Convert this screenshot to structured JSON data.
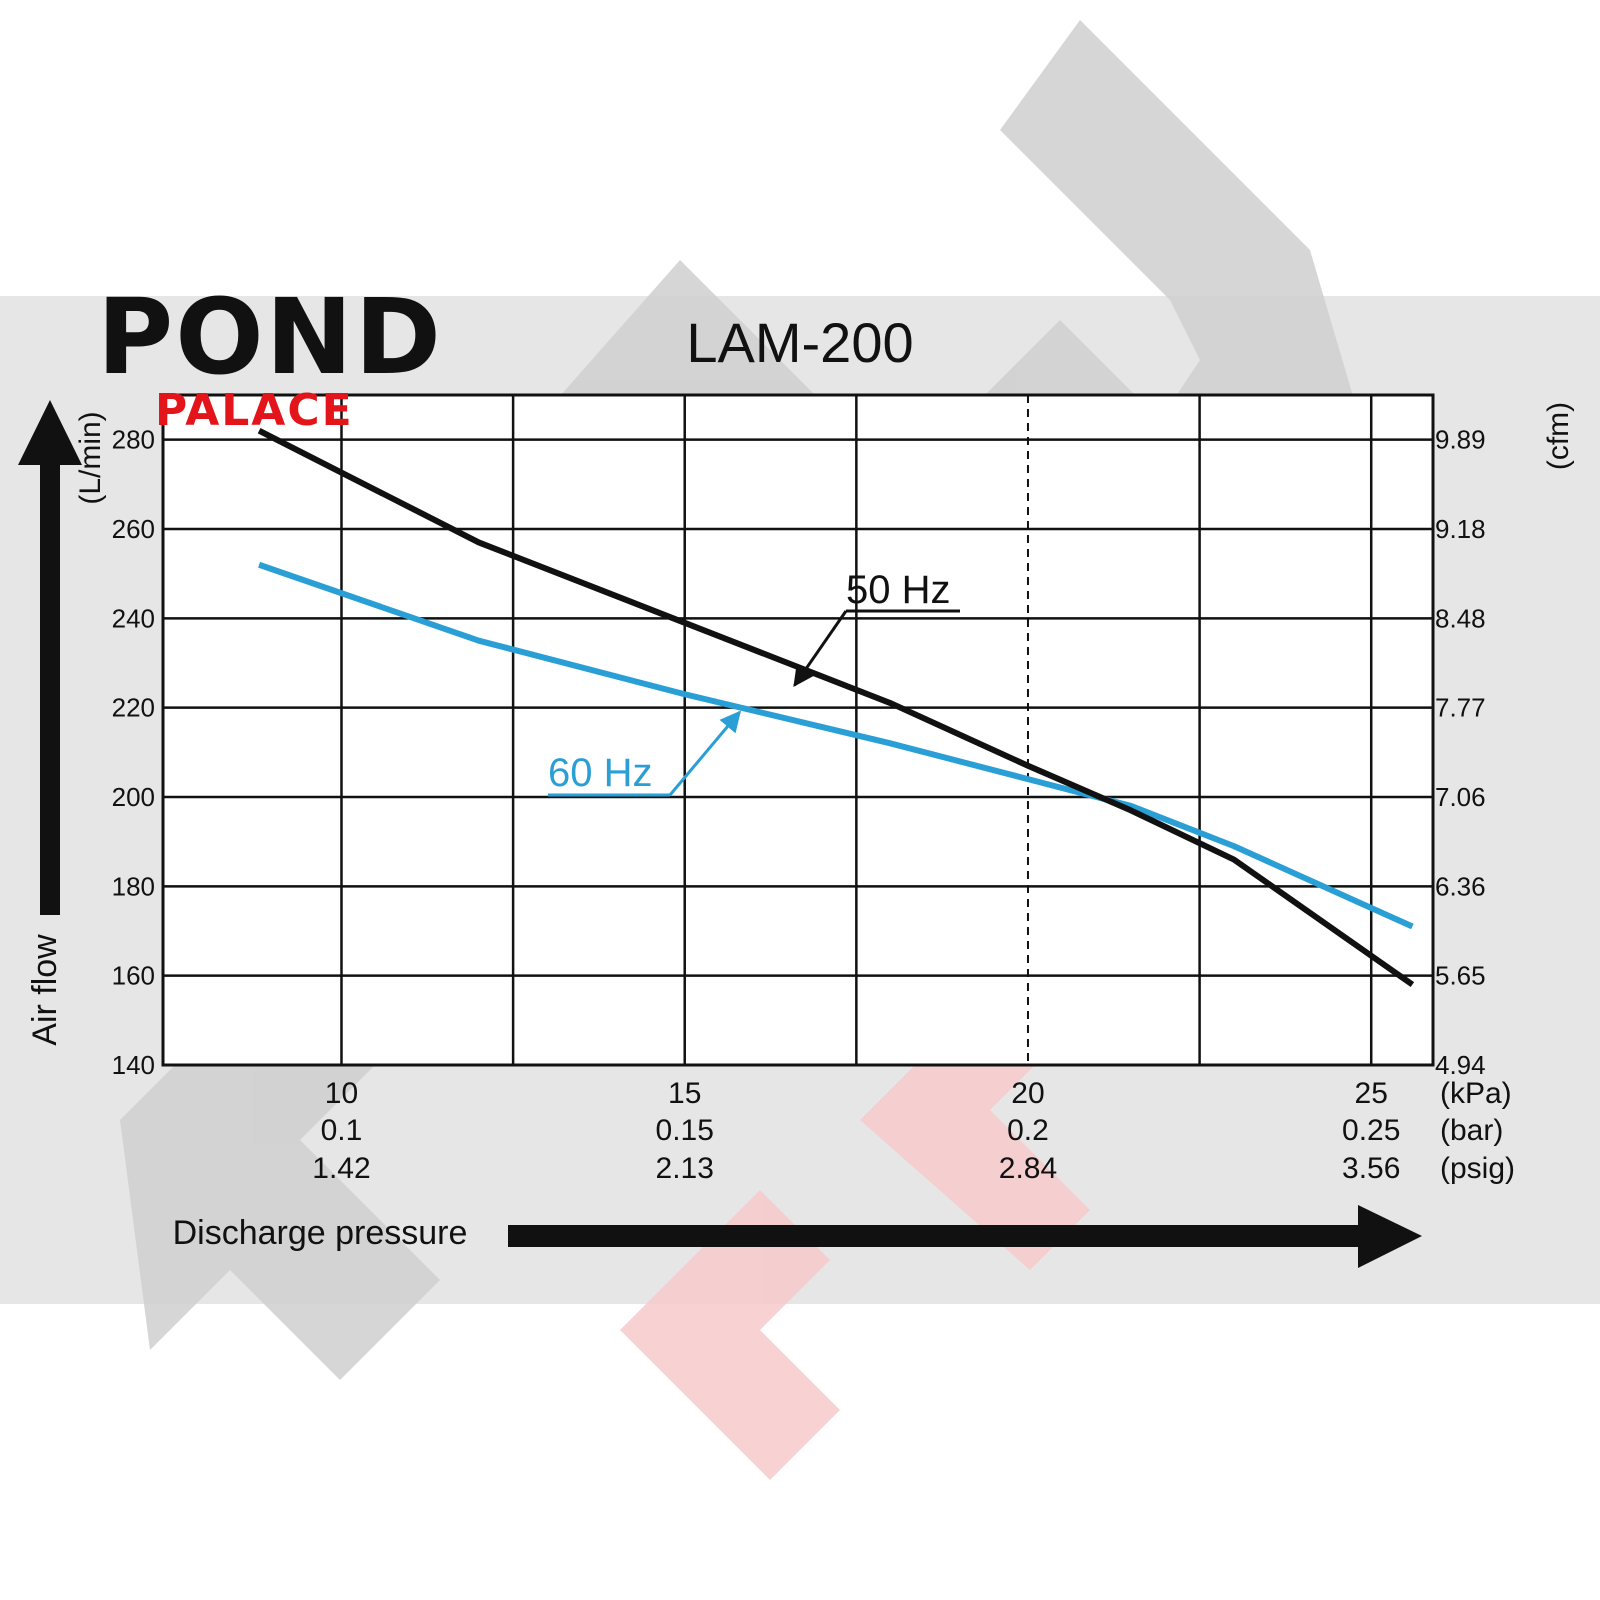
{
  "brand": {
    "name": "POND",
    "sub": "PALACE",
    "accent": "#e3151a"
  },
  "chart_data": {
    "type": "line",
    "title": "LAM-200",
    "xlabel": "Discharge pressure",
    "ylabel": "Air flow",
    "yunit_left": "(L/min)",
    "yunit_right": "(cfm)",
    "xlim": [
      7.4,
      25.9
    ],
    "ylim": [
      140,
      290
    ],
    "grid": true,
    "dashed_vline_x": 20,
    "x_ticks": [
      {
        "x": 10,
        "kpa": "10",
        "bar": "0.1",
        "psig": "1.42"
      },
      {
        "x": 15,
        "kpa": "15",
        "bar": "0.15",
        "psig": "2.13"
      },
      {
        "x": 20,
        "kpa": "20",
        "bar": "0.2",
        "psig": "2.84"
      },
      {
        "x": 25,
        "kpa": "25",
        "bar": "0.25",
        "psig": "3.56"
      }
    ],
    "x_gridlines": [
      10,
      12.5,
      15,
      17.5,
      20,
      22.5,
      25
    ],
    "x_unit_labels": [
      "(kPa)",
      "(bar)",
      "(psig)"
    ],
    "y_ticks_left": [
      {
        "y": 140,
        "label": "140"
      },
      {
        "y": 160,
        "label": "160"
      },
      {
        "y": 180,
        "label": "180"
      },
      {
        "y": 200,
        "label": "200"
      },
      {
        "y": 220,
        "label": "220"
      },
      {
        "y": 240,
        "label": "240"
      },
      {
        "y": 260,
        "label": "260"
      },
      {
        "y": 280,
        "label": "280"
      }
    ],
    "y_ticks_right": [
      {
        "y": 140,
        "label": "4.94"
      },
      {
        "y": 160,
        "label": "5.65"
      },
      {
        "y": 180,
        "label": "6.36"
      },
      {
        "y": 200,
        "label": "7.06"
      },
      {
        "y": 220,
        "label": "7.77"
      },
      {
        "y": 240,
        "label": "8.48"
      },
      {
        "y": 260,
        "label": "9.18"
      },
      {
        "y": 280,
        "label": "9.89"
      }
    ],
    "series": [
      {
        "name": "50 Hz",
        "color": "#111111",
        "x": [
          8.8,
          12,
          15,
          18,
          20,
          21.5,
          23,
          25.6
        ],
        "y": [
          282,
          257,
          239,
          221,
          207,
          197,
          186,
          158
        ]
      },
      {
        "name": "60 Hz",
        "color": "#2a9fd6",
        "x": [
          8.8,
          12,
          15,
          18,
          20,
          21.5,
          23,
          25.6
        ],
        "y": [
          252,
          235,
          223,
          212,
          204,
          198,
          189,
          171
        ]
      }
    ],
    "annotations": [
      {
        "series": "50 Hz",
        "text": "50 Hz",
        "x": 16.6,
        "y": 225
      },
      {
        "series": "60 Hz",
        "text": "60 Hz",
        "x": 15.8,
        "y": 219
      }
    ]
  },
  "watermark": {
    "text": "POND PALACE"
  }
}
